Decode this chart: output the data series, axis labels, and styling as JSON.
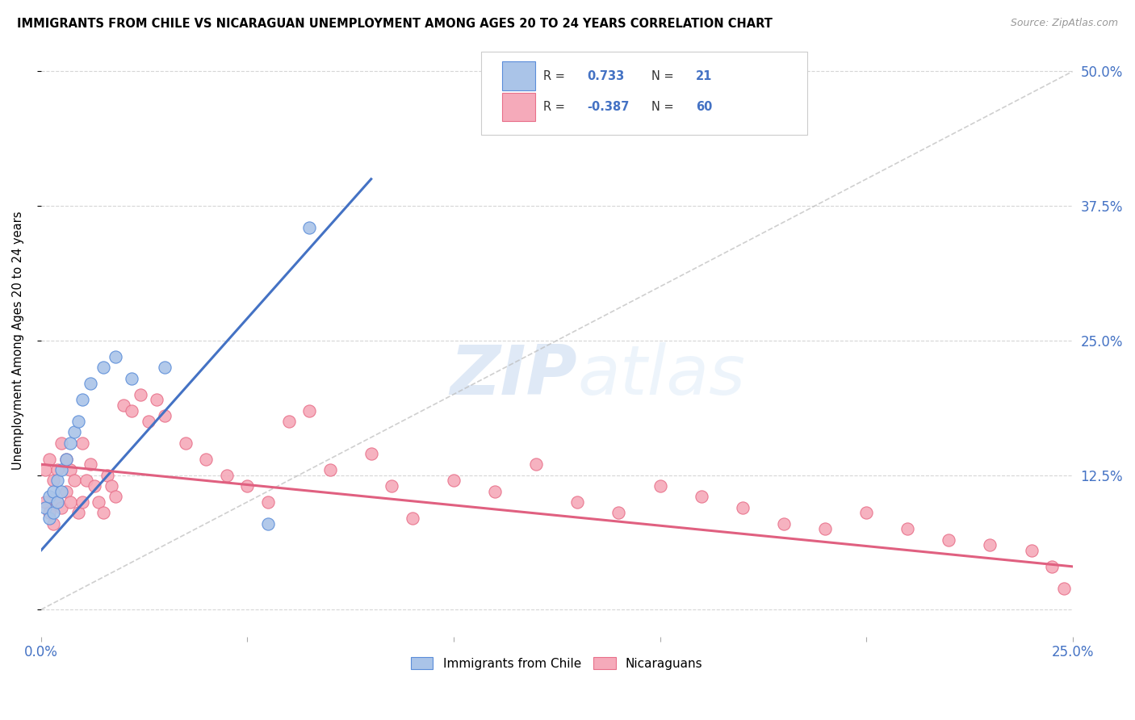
{
  "title": "IMMIGRANTS FROM CHILE VS NICARAGUAN UNEMPLOYMENT AMONG AGES 20 TO 24 YEARS CORRELATION CHART",
  "source": "Source: ZipAtlas.com",
  "ylabel": "Unemployment Among Ages 20 to 24 years",
  "xlim": [
    0.0,
    0.25
  ],
  "ylim": [
    -0.025,
    0.525
  ],
  "xticks": [
    0.0,
    0.05,
    0.1,
    0.15,
    0.2,
    0.25
  ],
  "xtick_labels": [
    "0.0%",
    "",
    "",
    "",
    "",
    "25.0%"
  ],
  "yticks_right": [
    0.0,
    0.125,
    0.25,
    0.375,
    0.5
  ],
  "ytick_labels_right": [
    "",
    "12.5%",
    "25.0%",
    "37.5%",
    "50.0%"
  ],
  "chile_color": "#aac4e8",
  "nicaragua_color": "#f5aaba",
  "chile_edge_color": "#5b8dd9",
  "nicaragua_edge_color": "#e8708a",
  "chile_line_color": "#4472c4",
  "nicaragua_line_color": "#e06080",
  "ref_line_color": "#bbbbbb",
  "watermark_color": "#d0e4f7",
  "r_chile": 0.733,
  "n_chile": 21,
  "r_nicaragua": -0.387,
  "n_nicaragua": 60,
  "watermark": "ZIPatlas",
  "chile_points_x": [
    0.001,
    0.002,
    0.002,
    0.003,
    0.003,
    0.004,
    0.004,
    0.005,
    0.005,
    0.006,
    0.007,
    0.008,
    0.009,
    0.01,
    0.012,
    0.015,
    0.018,
    0.022,
    0.03,
    0.055,
    0.065
  ],
  "chile_points_y": [
    0.095,
    0.085,
    0.105,
    0.11,
    0.09,
    0.12,
    0.1,
    0.13,
    0.11,
    0.14,
    0.155,
    0.165,
    0.175,
    0.195,
    0.21,
    0.225,
    0.235,
    0.215,
    0.225,
    0.08,
    0.355
  ],
  "nic_points_x": [
    0.001,
    0.001,
    0.002,
    0.002,
    0.003,
    0.003,
    0.004,
    0.004,
    0.005,
    0.005,
    0.006,
    0.006,
    0.007,
    0.007,
    0.008,
    0.009,
    0.01,
    0.01,
    0.011,
    0.012,
    0.013,
    0.014,
    0.015,
    0.016,
    0.017,
    0.018,
    0.02,
    0.022,
    0.024,
    0.026,
    0.028,
    0.03,
    0.035,
    0.04,
    0.045,
    0.05,
    0.055,
    0.06,
    0.065,
    0.07,
    0.08,
    0.085,
    0.09,
    0.1,
    0.11,
    0.12,
    0.13,
    0.14,
    0.15,
    0.16,
    0.17,
    0.18,
    0.19,
    0.2,
    0.21,
    0.22,
    0.23,
    0.24,
    0.245,
    0.248
  ],
  "nic_points_y": [
    0.13,
    0.1,
    0.14,
    0.09,
    0.12,
    0.08,
    0.13,
    0.1,
    0.155,
    0.095,
    0.14,
    0.11,
    0.13,
    0.1,
    0.12,
    0.09,
    0.155,
    0.1,
    0.12,
    0.135,
    0.115,
    0.1,
    0.09,
    0.125,
    0.115,
    0.105,
    0.19,
    0.185,
    0.2,
    0.175,
    0.195,
    0.18,
    0.155,
    0.14,
    0.125,
    0.115,
    0.1,
    0.175,
    0.185,
    0.13,
    0.145,
    0.115,
    0.085,
    0.12,
    0.11,
    0.135,
    0.1,
    0.09,
    0.115,
    0.105,
    0.095,
    0.08,
    0.075,
    0.09,
    0.075,
    0.065,
    0.06,
    0.055,
    0.04,
    0.02
  ],
  "chile_trend_x": [
    0.0,
    0.08
  ],
  "chile_trend_y": [
    0.055,
    0.4
  ],
  "nic_trend_x": [
    0.0,
    0.25
  ],
  "nic_trend_y": [
    0.135,
    0.04
  ]
}
